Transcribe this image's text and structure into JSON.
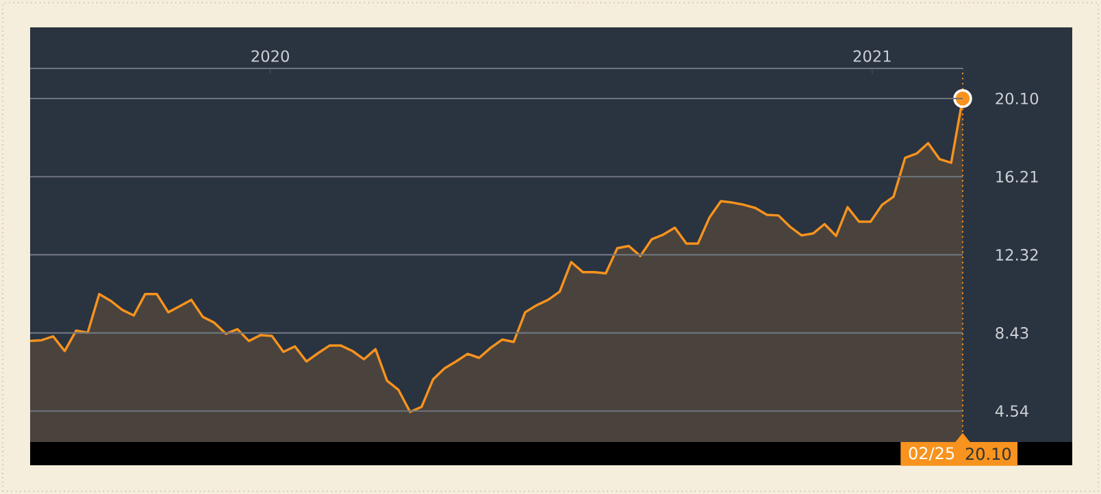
{
  "chart_data": {
    "type": "area",
    "x": [
      "2019-08-08",
      "2019-08-15",
      "2019-08-22",
      "2019-08-29",
      "2019-09-05",
      "2019-09-12",
      "2019-09-19",
      "2019-09-26",
      "2019-10-03",
      "2019-10-10",
      "2019-10-17",
      "2019-10-24",
      "2019-10-31",
      "2019-11-07",
      "2019-11-14",
      "2019-11-21",
      "2019-11-28",
      "2019-12-05",
      "2019-12-12",
      "2019-12-19",
      "2019-12-26",
      "2020-01-02",
      "2020-01-09",
      "2020-01-16",
      "2020-01-23",
      "2020-01-30",
      "2020-02-06",
      "2020-02-13",
      "2020-02-20",
      "2020-02-27",
      "2020-03-05",
      "2020-03-12",
      "2020-03-19",
      "2020-03-26",
      "2020-04-02",
      "2020-04-09",
      "2020-04-16",
      "2020-04-23",
      "2020-04-30",
      "2020-05-07",
      "2020-05-14",
      "2020-05-21",
      "2020-05-28",
      "2020-06-04",
      "2020-06-11",
      "2020-06-18",
      "2020-06-25",
      "2020-07-02",
      "2020-07-09",
      "2020-07-16",
      "2020-07-23",
      "2020-07-30",
      "2020-08-06",
      "2020-08-13",
      "2020-08-20",
      "2020-08-27",
      "2020-09-03",
      "2020-09-10",
      "2020-09-17",
      "2020-09-24",
      "2020-10-01",
      "2020-10-08",
      "2020-10-15",
      "2020-10-22",
      "2020-10-29",
      "2020-11-05",
      "2020-11-12",
      "2020-11-19",
      "2020-11-26",
      "2020-12-03",
      "2020-12-10",
      "2020-12-17",
      "2020-12-24",
      "2020-12-31",
      "2021-01-07",
      "2021-01-14",
      "2021-01-21",
      "2021-01-28",
      "2021-02-04",
      "2021-02-11",
      "2021-02-18",
      "2021-02-25"
    ],
    "series": [
      {
        "color": "#f7931e",
        "values": [
          8.03,
          8.07,
          8.26,
          7.53,
          8.55,
          8.44,
          10.37,
          10.03,
          9.58,
          9.3,
          10.37,
          10.37,
          9.46,
          9.76,
          10.08,
          9.23,
          8.94,
          8.39,
          8.62,
          8.03,
          8.32,
          8.28,
          7.49,
          7.76,
          7.01,
          7.42,
          7.8,
          7.8,
          7.53,
          7.12,
          7.62,
          6.05,
          5.59,
          4.5,
          4.75,
          6.12,
          6.67,
          7.01,
          7.39,
          7.19,
          7.69,
          8.1,
          7.98,
          9.46,
          9.81,
          10.08,
          10.49,
          11.96,
          11.46,
          11.46,
          11.4,
          12.65,
          12.76,
          12.26,
          13.1,
          13.33,
          13.67,
          12.88,
          12.88,
          14.17,
          14.99,
          14.92,
          14.81,
          14.65,
          14.31,
          14.28,
          13.72,
          13.29,
          13.38,
          13.85,
          13.26,
          14.69,
          13.97,
          13.97,
          14.81,
          15.22,
          17.15,
          17.36,
          17.88,
          17.08,
          16.9,
          20.1
        ]
      }
    ],
    "xlim": [
      "2019-08-08",
      "2021-02-25"
    ],
    "xticks": [
      {
        "value": "2020-01-01",
        "label": "2020"
      },
      {
        "value": "2021-01-01",
        "label": "2021"
      }
    ],
    "ylim": [
      3.0,
      21.6
    ],
    "yticks": [
      4.54,
      8.43,
      12.32,
      16.21,
      {
        "value": 20.1,
        "label": "20.10"
      }
    ],
    "grid": "y",
    "ref_lines": [
      {
        "axis": "x",
        "value": "2021-02-25",
        "color": "#f7931e",
        "line_style": "dotted"
      }
    ],
    "annotations": [
      "02/25",
      "20.10"
    ]
  }
}
